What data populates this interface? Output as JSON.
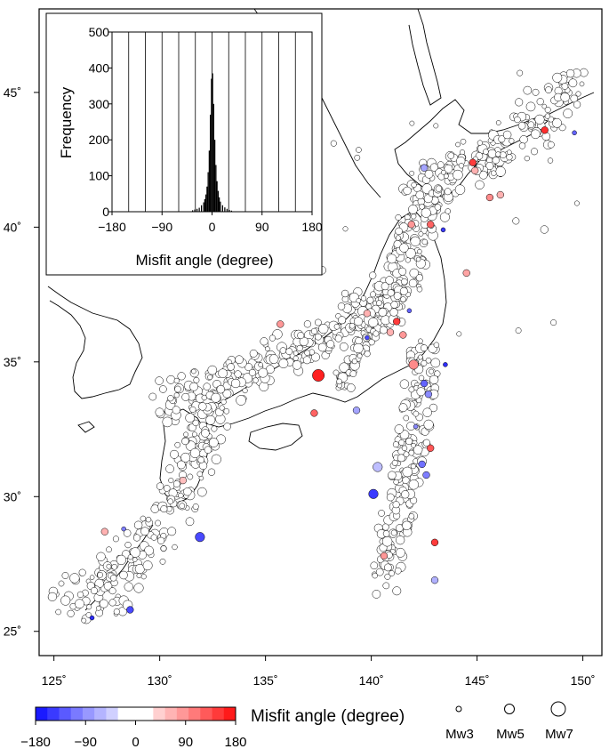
{
  "map": {
    "lon_ticks": [
      "125˚",
      "130˚",
      "135˚",
      "140˚",
      "145˚",
      "150˚"
    ],
    "lat_ticks": [
      "25˚",
      "30˚",
      "35˚",
      "40˚",
      "45˚"
    ],
    "lon_range": [
      124.3,
      150.9
    ],
    "lat_range": [
      24.1,
      48.1
    ],
    "marker_style": "open circles sized by magnitude; fill color = misfit angle",
    "colored_events": [
      {
        "lon": 137.5,
        "lat": 34.5,
        "mw": 6,
        "misfit": 170
      },
      {
        "lon": 140.1,
        "lat": 30.1,
        "mw": 5,
        "misfit": -150
      },
      {
        "lon": 131.9,
        "lat": 28.5,
        "mw": 5,
        "misfit": -140
      },
      {
        "lon": 142.0,
        "lat": 34.9,
        "mw": 5,
        "misfit": 90
      },
      {
        "lon": 142.5,
        "lat": 34.2,
        "mw": 4,
        "misfit": -120
      },
      {
        "lon": 142.7,
        "lat": 33.8,
        "mw": 4,
        "misfit": -90
      },
      {
        "lon": 142.8,
        "lat": 31.8,
        "mw": 4,
        "misfit": 130
      },
      {
        "lon": 142.4,
        "lat": 31.2,
        "mw": 4,
        "misfit": -110
      },
      {
        "lon": 142.6,
        "lat": 30.8,
        "mw": 4,
        "misfit": -100
      },
      {
        "lon": 143.0,
        "lat": 28.3,
        "mw": 4,
        "misfit": 150
      },
      {
        "lon": 140.6,
        "lat": 27.8,
        "mw": 4,
        "misfit": 80
      },
      {
        "lon": 140.3,
        "lat": 31.1,
        "mw": 5,
        "misfit": -50
      },
      {
        "lon": 128.6,
        "lat": 25.8,
        "mw": 4,
        "misfit": -140
      },
      {
        "lon": 127.4,
        "lat": 28.7,
        "mw": 4,
        "misfit": 60
      },
      {
        "lon": 128.3,
        "lat": 28.8,
        "mw": 3,
        "misfit": -100
      },
      {
        "lon": 126.8,
        "lat": 25.5,
        "mw": 3,
        "misfit": -160
      },
      {
        "lon": 131.1,
        "lat": 30.6,
        "mw": 4,
        "misfit": 50
      },
      {
        "lon": 137.3,
        "lat": 33.1,
        "mw": 4,
        "misfit": 120
      },
      {
        "lon": 142.5,
        "lat": 42.2,
        "mw": 4,
        "misfit": -70
      },
      {
        "lon": 144.8,
        "lat": 42.4,
        "mw": 4,
        "misfit": 150
      },
      {
        "lon": 144.9,
        "lat": 42.1,
        "mw": 4,
        "misfit": 60
      },
      {
        "lon": 148.2,
        "lat": 43.6,
        "mw": 4,
        "misfit": 160
      },
      {
        "lon": 146.1,
        "lat": 41.2,
        "mw": 4,
        "misfit": 60
      },
      {
        "lon": 141.9,
        "lat": 40.1,
        "mw": 4,
        "misfit": 80
      },
      {
        "lon": 142.8,
        "lat": 40.1,
        "mw": 4,
        "misfit": 120
      },
      {
        "lon": 143.4,
        "lat": 39.9,
        "mw": 3,
        "misfit": -150
      },
      {
        "lon": 144.5,
        "lat": 38.3,
        "mw": 4,
        "misfit": 70
      },
      {
        "lon": 141.5,
        "lat": 36.0,
        "mw": 4,
        "misfit": 80
      },
      {
        "lon": 141.2,
        "lat": 36.5,
        "mw": 4,
        "misfit": 150
      },
      {
        "lon": 141.8,
        "lat": 36.9,
        "mw": 3,
        "misfit": -120
      },
      {
        "lon": 139.8,
        "lat": 36.8,
        "mw": 4,
        "misfit": 60
      },
      {
        "lon": 139.8,
        "lat": 35.9,
        "mw": 3,
        "misfit": -140
      },
      {
        "lon": 143.5,
        "lat": 34.9,
        "mw": 3,
        "misfit": -160
      },
      {
        "lon": 142.1,
        "lat": 32.6,
        "mw": 3,
        "misfit": -90
      },
      {
        "lon": 143.0,
        "lat": 26.9,
        "mw": 4,
        "misfit": -60
      },
      {
        "lon": 140.9,
        "lat": 36.1,
        "mw": 4,
        "misfit": 60
      },
      {
        "lon": 135.7,
        "lat": 36.4,
        "mw": 4,
        "misfit": 80
      },
      {
        "lon": 139.3,
        "lat": 33.2,
        "mw": 4,
        "misfit": -70
      },
      {
        "lon": 145.6,
        "lat": 41.1,
        "mw": 4,
        "misfit": 90
      },
      {
        "lon": 149.6,
        "lat": 43.5,
        "mw": 3,
        "misfit": -120
      }
    ]
  },
  "histogram": {
    "ylabel": "Frequency",
    "xlabel": "Misfit angle (degree)",
    "x_ticks": [
      "−180",
      "−90",
      "0",
      "90",
      "180"
    ],
    "y_ticks": [
      "0",
      "100",
      "200",
      "300",
      "400",
      "500"
    ]
  },
  "chart_data": {
    "type": "bar",
    "title": "",
    "xlabel": "Misfit angle (degree)",
    "ylabel": "Frequency",
    "xlim": [
      -180,
      180
    ],
    "ylim": [
      0,
      500
    ],
    "bin_width_deg": 2,
    "bin_centers": [
      -35,
      -31,
      -27,
      -23,
      -19,
      -15,
      -13,
      -11,
      -9,
      -7,
      -5,
      -3,
      -1,
      1,
      3,
      5,
      7,
      9,
      11,
      13,
      15,
      19,
      23,
      27,
      31,
      35
    ],
    "values": [
      4,
      6,
      8,
      11,
      18,
      26,
      35,
      48,
      70,
      110,
      170,
      270,
      370,
      385,
      300,
      200,
      130,
      85,
      58,
      40,
      28,
      18,
      12,
      8,
      5,
      3
    ]
  },
  "colorbar": {
    "title": "Misfit angle (degree)",
    "ticks": [
      "−180",
      "−90",
      "0",
      "90",
      "180"
    ],
    "colors": [
      "#1a1aff",
      "#3a3aff",
      "#5a5aff",
      "#7a7aff",
      "#9898ff",
      "#b4b4ff",
      "#d0d0ff",
      "#ffffff",
      "#ffffff",
      "#ffffff",
      "#ffd0d0",
      "#ffb4b4",
      "#ff9898",
      "#ff7a7a",
      "#ff5a5a",
      "#ff3a3a",
      "#ff1a1a"
    ]
  },
  "size_legend": {
    "items": [
      "Mw3",
      "Mw5",
      "Mw7"
    ]
  }
}
